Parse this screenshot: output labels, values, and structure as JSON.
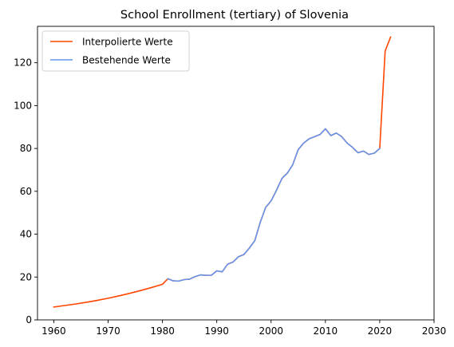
{
  "chart_data": {
    "type": "line",
    "title": "School Enrollment (tertiary) of Slovenia",
    "xlabel": "",
    "ylabel": "",
    "xlim": [
      1957,
      2030
    ],
    "ylim": [
      0,
      137
    ],
    "xticks": [
      1960,
      1970,
      1980,
      1990,
      2000,
      2010,
      2020,
      2030
    ],
    "yticks": [
      0,
      20,
      40,
      60,
      80,
      100,
      120
    ],
    "grid": false,
    "legend_position": "top-left",
    "series": [
      {
        "name": "Interpolierte Werte",
        "color": "#ff4500",
        "x": [
          1960,
          1962,
          1964,
          1966,
          1968,
          1970,
          1972,
          1974,
          1976,
          1978,
          1980,
          1981,
          1982,
          1983,
          1984,
          1985,
          1986,
          1987,
          1988,
          1989,
          1990,
          1991,
          1992,
          1993,
          1994,
          1995,
          1996,
          1997,
          1998,
          1999,
          2000,
          2001,
          2002,
          2003,
          2004,
          2005,
          2006,
          2007,
          2008,
          2009,
          2010,
          2011,
          2012,
          2013,
          2014,
          2015,
          2016,
          2017,
          2018,
          2019,
          2020,
          2021,
          2022
        ],
        "y": [
          6.0,
          6.7,
          7.4,
          8.2,
          9.1,
          10.1,
          11.2,
          12.4,
          13.7,
          15.1,
          16.6,
          19.2,
          18.2,
          18.1,
          18.8,
          19.0,
          20.2,
          21.0,
          20.8,
          20.8,
          22.9,
          22.4,
          26.0,
          27.0,
          29.5,
          30.5,
          33.5,
          37.0,
          45.5,
          52.5,
          55.5,
          60.5,
          66.0,
          68.5,
          72.5,
          79.5,
          82.5,
          84.5,
          85.5,
          86.5,
          89.2,
          86.0,
          87.2,
          85.5,
          82.5,
          80.5,
          78.0,
          78.8,
          77.2,
          77.8,
          80.0,
          125.5,
          132.0
        ]
      },
      {
        "name": "Bestehende Werte",
        "color": "#6495ed",
        "x": [
          1981,
          1982,
          1983,
          1984,
          1985,
          1986,
          1987,
          1988,
          1989,
          1990,
          1991,
          1992,
          1993,
          1994,
          1995,
          1996,
          1997,
          1998,
          1999,
          2000,
          2001,
          2002,
          2003,
          2004,
          2005,
          2006,
          2007,
          2008,
          2009,
          2010,
          2011,
          2012,
          2013,
          2014,
          2015,
          2016,
          2017,
          2018,
          2019,
          2020
        ],
        "y": [
          19.2,
          18.2,
          18.1,
          18.8,
          19.0,
          20.2,
          21.0,
          20.8,
          20.8,
          22.9,
          22.4,
          26.0,
          27.0,
          29.5,
          30.5,
          33.5,
          37.0,
          45.5,
          52.5,
          55.5,
          60.5,
          66.0,
          68.5,
          72.5,
          79.5,
          82.5,
          84.5,
          85.5,
          86.5,
          89.2,
          86.0,
          87.2,
          85.5,
          82.5,
          80.5,
          78.0,
          78.8,
          77.2,
          77.8,
          80.0
        ]
      }
    ]
  }
}
